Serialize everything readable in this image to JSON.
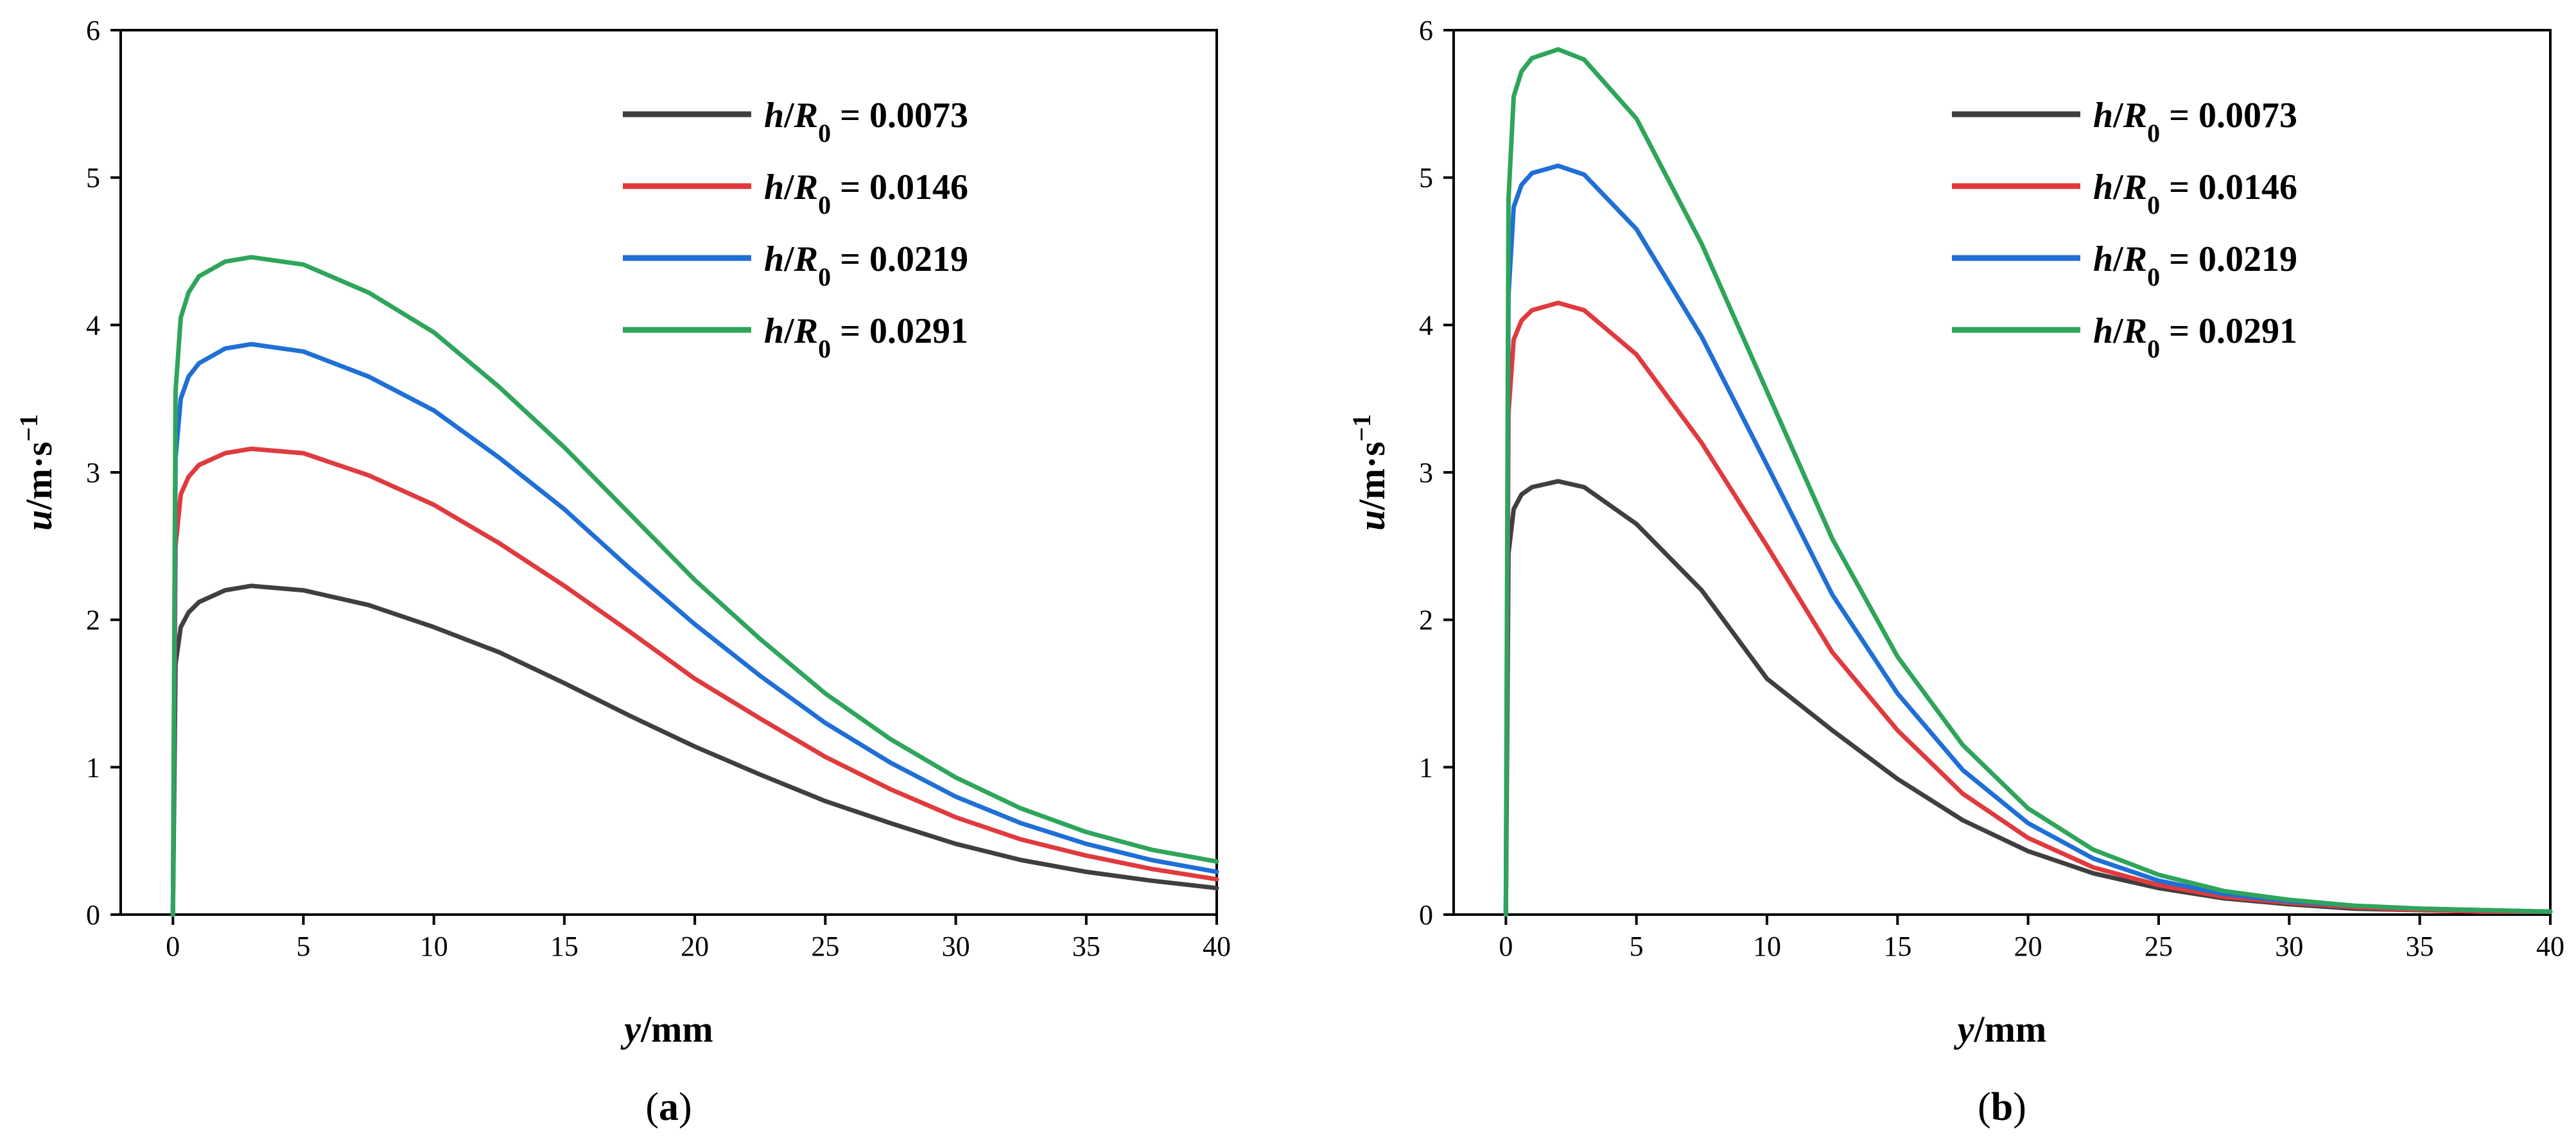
{
  "chart_data": [
    {
      "panel": "(a)",
      "type": "line",
      "xlabel": "y/mm",
      "ylabel": "u/m·s⁻¹",
      "xlim": [
        -2,
        40
      ],
      "ylim": [
        0,
        6
      ],
      "xticks": [
        0,
        5,
        10,
        15,
        20,
        25,
        30,
        35,
        40
      ],
      "yticks": [
        0,
        1,
        2,
        3,
        4,
        5,
        6
      ],
      "legend_position": "top-right",
      "series": [
        {
          "name": "h/R0 = 0.0073",
          "color": "#3f3f3f",
          "x": [
            0,
            0.1,
            0.3,
            0.6,
            1,
            2,
            3,
            5,
            7.5,
            10,
            12.5,
            15,
            17.5,
            20,
            22.5,
            25,
            27.5,
            30,
            32.5,
            35,
            37.5,
            40
          ],
          "values": [
            0,
            1.7,
            1.95,
            2.05,
            2.12,
            2.2,
            2.23,
            2.2,
            2.1,
            1.95,
            1.78,
            1.57,
            1.35,
            1.14,
            0.95,
            0.77,
            0.62,
            0.48,
            0.37,
            0.29,
            0.23,
            0.18
          ]
        },
        {
          "name": "h/R0 = 0.0146",
          "color": "#e03a3e",
          "x": [
            0,
            0.1,
            0.3,
            0.6,
            1,
            2,
            3,
            5,
            7.5,
            10,
            12.5,
            15,
            17.5,
            20,
            22.5,
            25,
            27.5,
            30,
            32.5,
            35,
            37.5,
            40
          ],
          "values": [
            0,
            2.5,
            2.85,
            2.97,
            3.05,
            3.13,
            3.16,
            3.13,
            2.98,
            2.78,
            2.52,
            2.23,
            1.92,
            1.6,
            1.33,
            1.07,
            0.85,
            0.66,
            0.51,
            0.4,
            0.31,
            0.24
          ]
        },
        {
          "name": "h/R0 = 0.0219",
          "color": "#1f6fd6",
          "x": [
            0,
            0.1,
            0.3,
            0.6,
            1,
            2,
            3,
            5,
            7.5,
            10,
            12.5,
            15,
            17.5,
            20,
            22.5,
            25,
            27.5,
            30,
            32.5,
            35,
            37.5,
            40
          ],
          "values": [
            0,
            3.1,
            3.5,
            3.65,
            3.74,
            3.84,
            3.87,
            3.82,
            3.65,
            3.42,
            3.1,
            2.75,
            2.35,
            1.97,
            1.62,
            1.3,
            1.03,
            0.8,
            0.62,
            0.48,
            0.37,
            0.29
          ]
        },
        {
          "name": "h/R0 = 0.0291",
          "color": "#2ea55a",
          "x": [
            0,
            0.1,
            0.3,
            0.6,
            1,
            2,
            3,
            5,
            7.5,
            10,
            12.5,
            15,
            17.5,
            20,
            22.5,
            25,
            27.5,
            30,
            32.5,
            35,
            37.5,
            40
          ],
          "values": [
            0,
            3.55,
            4.05,
            4.22,
            4.33,
            4.43,
            4.46,
            4.41,
            4.22,
            3.95,
            3.58,
            3.17,
            2.72,
            2.27,
            1.87,
            1.5,
            1.19,
            0.93,
            0.72,
            0.56,
            0.44,
            0.36
          ]
        }
      ]
    },
    {
      "panel": "(b)",
      "type": "line",
      "xlabel": "y/mm",
      "ylabel": "u/m·s⁻¹",
      "xlim": [
        -2,
        40
      ],
      "ylim": [
        0,
        6
      ],
      "xticks": [
        0,
        5,
        10,
        15,
        20,
        25,
        30,
        35,
        40
      ],
      "yticks": [
        0,
        1,
        2,
        3,
        4,
        5,
        6
      ],
      "legend_position": "top-right",
      "series": [
        {
          "name": "h/R0 = 0.0073",
          "color": "#3f3f3f",
          "x": [
            0,
            0.1,
            0.3,
            0.6,
            1,
            2,
            3,
            5,
            7.5,
            10,
            12.5,
            15,
            17.5,
            20,
            22.5,
            25,
            27.5,
            30,
            32.5,
            35,
            37.5,
            40
          ],
          "values": [
            0,
            2.45,
            2.75,
            2.85,
            2.9,
            2.94,
            2.9,
            2.65,
            2.2,
            1.6,
            1.25,
            0.92,
            0.64,
            0.43,
            0.28,
            0.18,
            0.11,
            0.07,
            0.04,
            0.03,
            0.02,
            0.02
          ]
        },
        {
          "name": "h/R0 = 0.0146",
          "color": "#e03a3e",
          "x": [
            0,
            0.1,
            0.3,
            0.6,
            1,
            2,
            3,
            5,
            7.5,
            10,
            12.5,
            15,
            17.5,
            20,
            22.5,
            25,
            27.5,
            30,
            32.5,
            35,
            37.5,
            40
          ],
          "values": [
            0,
            3.4,
            3.9,
            4.03,
            4.1,
            4.15,
            4.1,
            3.8,
            3.2,
            2.5,
            1.78,
            1.25,
            0.82,
            0.52,
            0.32,
            0.2,
            0.12,
            0.08,
            0.05,
            0.03,
            0.02,
            0.02
          ]
        },
        {
          "name": "h/R0 = 0.0219",
          "color": "#1f6fd6",
          "x": [
            0,
            0.1,
            0.3,
            0.6,
            1,
            2,
            3,
            5,
            7.5,
            10,
            12.5,
            15,
            17.5,
            20,
            22.5,
            25,
            27.5,
            30,
            32.5,
            35,
            37.5,
            40
          ],
          "values": [
            0,
            4.2,
            4.8,
            4.95,
            5.03,
            5.08,
            5.02,
            4.65,
            3.92,
            3.05,
            2.17,
            1.5,
            0.98,
            0.62,
            0.38,
            0.23,
            0.14,
            0.09,
            0.06,
            0.04,
            0.03,
            0.02
          ]
        },
        {
          "name": "h/R0 = 0.0291",
          "color": "#2ea55a",
          "x": [
            0,
            0.1,
            0.3,
            0.6,
            1,
            2,
            3,
            5,
            7.5,
            10,
            12.5,
            15,
            17.5,
            20,
            22.5,
            25,
            27.5,
            30,
            32.5,
            35,
            37.5,
            40
          ],
          "values": [
            0,
            4.85,
            5.55,
            5.72,
            5.81,
            5.87,
            5.8,
            5.4,
            4.55,
            3.55,
            2.55,
            1.75,
            1.15,
            0.72,
            0.44,
            0.27,
            0.16,
            0.1,
            0.06,
            0.04,
            0.03,
            0.02
          ]
        }
      ]
    }
  ]
}
